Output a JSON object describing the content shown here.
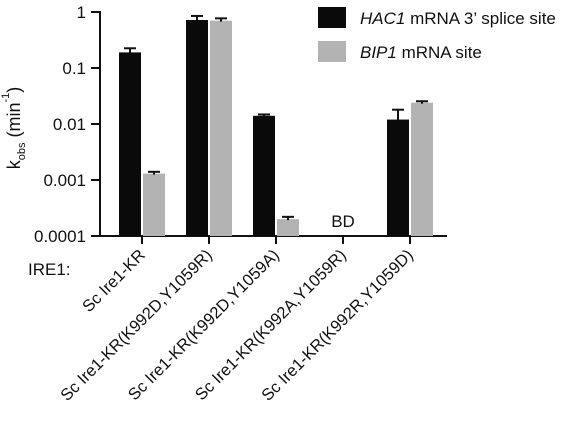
{
  "chart_data": {
    "type": "bar",
    "yscale": "log",
    "ylim": [
      0.0001,
      1
    ],
    "y_ticks": [
      {
        "value": 1,
        "label": "1"
      },
      {
        "value": 0.1,
        "label": "0.1"
      },
      {
        "value": 0.01,
        "label": "0.01"
      },
      {
        "value": 0.001,
        "label": "0.001"
      },
      {
        "value": 0.0001,
        "label": "0.0001"
      }
    ],
    "ylabel": {
      "main": "k",
      "sub": "obs",
      "unit_pre": " (min",
      "unit_sup": "-1",
      "unit_post": ")"
    },
    "x_prefix_label": "IRE1:",
    "categories": [
      "Sc Ire1-KR",
      "Sc Ire1-KR(K992D,Y1059R)",
      "Sc Ire1-KR(K992D,Y1059A)",
      "Sc Ire1-KR(K992A,Y1059R)",
      "Sc Ire1-KR(K992R,Y1059D)"
    ],
    "series": [
      {
        "name_italic": "HAC1",
        "name_rest": " mRNA 3’ splice site",
        "color": "#0a0a0a",
        "values": [
          0.19,
          0.72,
          0.014,
          null,
          0.012
        ],
        "errors": [
          0.035,
          0.13,
          0.0008,
          null,
          0.006
        ]
      },
      {
        "name_italic": "BIP1",
        "name_rest": " mRNA site",
        "color": "#b3b3b3",
        "values": [
          0.0013,
          0.7,
          0.0002,
          null,
          0.024
        ],
        "errors": [
          0.0001,
          0.07,
          2e-05,
          null,
          0.0015
        ]
      }
    ],
    "annotations": [
      {
        "category_index": 3,
        "text": "BD"
      }
    ],
    "legend_position": "top-right",
    "grid": false
  }
}
